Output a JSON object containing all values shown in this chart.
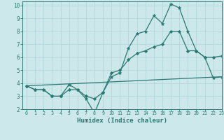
{
  "xlabel": "Humidex (Indice chaleur)",
  "xlim": [
    -0.5,
    23
  ],
  "ylim": [
    2,
    10.3
  ],
  "yticks": [
    2,
    3,
    4,
    5,
    6,
    7,
    8,
    9,
    10
  ],
  "xticks": [
    0,
    1,
    2,
    3,
    4,
    5,
    6,
    7,
    8,
    9,
    10,
    11,
    12,
    13,
    14,
    15,
    16,
    17,
    18,
    19,
    20,
    21,
    22,
    23
  ],
  "bg_color": "#cde8ea",
  "grid_color": "#b0d4d8",
  "line_color": "#2a7a72",
  "line1_x": [
    0,
    1,
    2,
    3,
    4,
    5,
    6,
    7,
    8,
    9,
    10,
    11,
    12,
    13,
    14,
    15,
    16,
    17,
    18,
    19,
    20,
    21,
    22,
    23
  ],
  "line1_y": [
    3.8,
    3.5,
    3.5,
    3.0,
    3.0,
    3.9,
    3.5,
    2.8,
    1.7,
    3.3,
    4.5,
    4.8,
    6.7,
    7.8,
    8.0,
    9.2,
    8.6,
    10.1,
    9.8,
    8.0,
    6.5,
    6.0,
    4.4,
    4.5
  ],
  "line2_x": [
    0,
    1,
    2,
    3,
    4,
    5,
    6,
    7,
    8,
    9,
    10,
    11,
    12,
    13,
    14,
    15,
    16,
    17,
    18,
    19,
    20,
    21,
    22,
    23
  ],
  "line2_y": [
    3.8,
    3.5,
    3.5,
    3.0,
    3.0,
    3.5,
    3.5,
    3.0,
    2.8,
    3.3,
    4.8,
    5.0,
    5.8,
    6.3,
    6.5,
    6.8,
    7.0,
    8.0,
    8.0,
    6.5,
    6.5,
    6.0,
    6.0,
    6.1
  ],
  "line3_x": [
    0,
    23
  ],
  "line3_y": [
    3.8,
    4.5
  ]
}
